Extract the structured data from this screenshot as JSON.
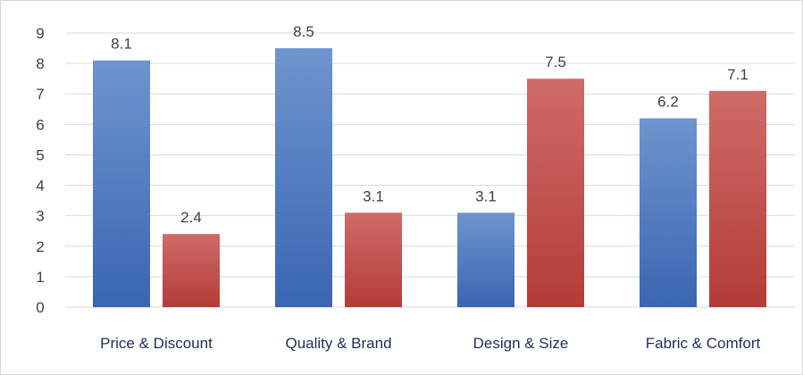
{
  "chart_data": {
    "type": "bar",
    "categories": [
      "Price & Discount",
      "Quality & Brand",
      "Design & Size",
      "Fabric & Comfort"
    ],
    "series": [
      {
        "values": [
          8.1,
          8.5,
          3.1,
          6.2
        ],
        "color": "#4472c4"
      },
      {
        "values": [
          2.4,
          3.1,
          7.5,
          7.1
        ],
        "color": "#c0504d"
      }
    ],
    "ylim": [
      0,
      9
    ],
    "yticks": [
      0,
      1,
      2,
      3,
      4,
      5,
      6,
      7,
      8,
      9
    ],
    "grid": true,
    "data_labels": true
  }
}
